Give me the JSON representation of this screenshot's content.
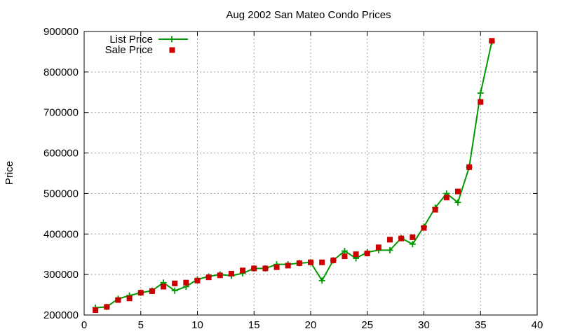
{
  "chart_data": {
    "type": "line",
    "title": "Aug 2002 San Mateo Condo Prices",
    "xlabel": "",
    "ylabel": "Price",
    "xlim": [
      0,
      40
    ],
    "ylim": [
      200000,
      900000
    ],
    "xticks": [
      0,
      5,
      10,
      15,
      20,
      25,
      30,
      35,
      40
    ],
    "yticks": [
      200000,
      300000,
      400000,
      500000,
      600000,
      700000,
      800000,
      900000
    ],
    "grid": true,
    "legend_position": "top-left",
    "series": [
      {
        "name": "List Price",
        "style": "line-with-plus-markers",
        "color": "#009900",
        "x": [
          1,
          2,
          3,
          4,
          5,
          6,
          7,
          8,
          9,
          10,
          11,
          12,
          13,
          14,
          15,
          16,
          17,
          18,
          19,
          20,
          21,
          22,
          23,
          24,
          25,
          26,
          27,
          28,
          29,
          30,
          31,
          32,
          33,
          34,
          35,
          36
        ],
        "values": [
          218000,
          220000,
          240000,
          248000,
          255000,
          260000,
          280000,
          260000,
          270000,
          288000,
          295000,
          300000,
          297000,
          303000,
          315000,
          315000,
          325000,
          325000,
          328000,
          330000,
          285000,
          335000,
          358000,
          340000,
          355000,
          360000,
          360000,
          390000,
          375000,
          418000,
          465000,
          500000,
          478000,
          565000,
          748000,
          875000
        ]
      },
      {
        "name": "Sale Price",
        "style": "square-markers",
        "color": "#cc0000",
        "x": [
          1,
          2,
          3,
          4,
          5,
          6,
          7,
          8,
          9,
          10,
          11,
          12,
          13,
          14,
          15,
          16,
          17,
          18,
          19,
          20,
          21,
          22,
          23,
          24,
          25,
          26,
          27,
          28,
          29,
          30,
          31,
          32,
          33,
          34,
          35,
          36
        ],
        "values": [
          212000,
          220000,
          237000,
          241000,
          255000,
          259000,
          270000,
          278000,
          280000,
          285000,
          293000,
          298000,
          302000,
          310000,
          315000,
          315000,
          318000,
          322000,
          328000,
          330000,
          330000,
          335000,
          345000,
          350000,
          352000,
          367000,
          386000,
          389000,
          392000,
          415000,
          460000,
          490000,
          505000,
          565000,
          726000,
          877000
        ]
      }
    ]
  }
}
